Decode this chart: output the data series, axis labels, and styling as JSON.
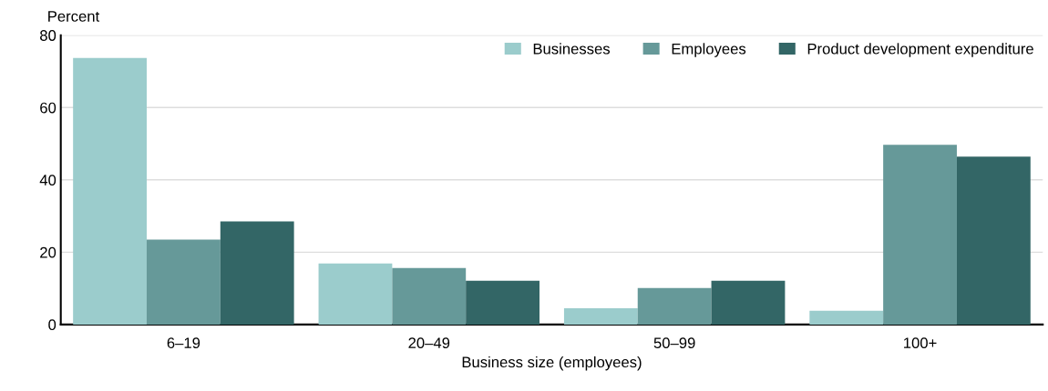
{
  "chart_data": {
    "type": "bar",
    "ylabel": "Percent",
    "xlabel": "Business size (employees)",
    "categories": [
      "6–19",
      "20–49",
      "50–99",
      "100+"
    ],
    "series": [
      {
        "name": "Businesses",
        "color": "#9bcccc",
        "values": [
          73.7,
          16.9,
          4.5,
          3.8
        ]
      },
      {
        "name": "Employees",
        "color": "#669999",
        "values": [
          23.5,
          15.6,
          10.1,
          49.7
        ]
      },
      {
        "name": "Product development expenditure",
        "color": "#336666",
        "values": [
          28.5,
          12.1,
          12.1,
          46.4
        ]
      }
    ],
    "ylim": [
      0,
      80
    ],
    "yticks": [
      0,
      20,
      40,
      60,
      80
    ],
    "grid": "y",
    "legend": "top right"
  }
}
